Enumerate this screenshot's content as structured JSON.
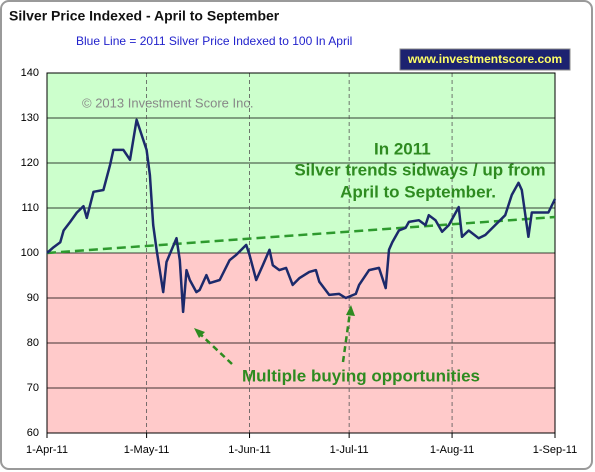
{
  "chart_data": {
    "type": "line",
    "title": "Silver Price Indexed - April to September",
    "subtitle": "Blue Line =  2011 Silver Price Indexed to 100 In April",
    "website": "www.investmentscore.com",
    "copyright": "© 2013 Investment Score Inc.",
    "annotations": [
      "In 2011",
      "Silver trends sidways / up from",
      "April to September.",
      "Multiple buying opportunities"
    ],
    "x": [
      "2011-04-01",
      "2011-04-03",
      "2011-04-05",
      "2011-04-06",
      "2011-04-08",
      "2011-04-10",
      "2011-04-12",
      "2011-04-13",
      "2011-04-15",
      "2011-04-18",
      "2011-04-20",
      "2011-04-21",
      "2011-04-24",
      "2011-04-26",
      "2011-04-28",
      "2011-05-01",
      "2011-05-02",
      "2011-05-03",
      "2011-05-04",
      "2011-05-06",
      "2011-05-07",
      "2011-05-10",
      "2011-05-11",
      "2011-05-12",
      "2011-05-13",
      "2011-05-14",
      "2011-05-16",
      "2011-05-17",
      "2011-05-19",
      "2011-05-20",
      "2011-05-23",
      "2011-05-26",
      "2011-05-28",
      "2011-05-31",
      "2011-06-01",
      "2011-06-03",
      "2011-06-05",
      "2011-06-07",
      "2011-06-08",
      "2011-06-10",
      "2011-06-12",
      "2011-06-14",
      "2011-06-16",
      "2011-06-19",
      "2011-06-21",
      "2011-06-22",
      "2011-06-25",
      "2011-06-28",
      "2011-06-30",
      "2011-07-03",
      "2011-07-04",
      "2011-07-07",
      "2011-07-10",
      "2011-07-12",
      "2011-07-13",
      "2011-07-14",
      "2011-07-16",
      "2011-07-18",
      "2011-07-19",
      "2011-07-22",
      "2011-07-24",
      "2011-07-25",
      "2011-07-27",
      "2011-07-29",
      "2011-07-31",
      "2011-08-03",
      "2011-08-04",
      "2011-08-06",
      "2011-08-09",
      "2011-08-11",
      "2011-08-14",
      "2011-08-17",
      "2011-08-19",
      "2011-08-21",
      "2011-08-22",
      "2011-08-24",
      "2011-08-25",
      "2011-08-27",
      "2011-08-30",
      "2011-09-01"
    ],
    "series": [
      {
        "color": "#1c2a6b",
        "values": [
          100,
          101.3,
          102.4,
          105,
          106.9,
          109,
          110.4,
          107.8,
          113.6,
          114,
          119.6,
          122.9,
          122.9,
          120.7,
          129.6,
          122.9,
          117.3,
          106.2,
          100.7,
          91.3,
          98,
          103.3,
          98.4,
          86.9,
          96.2,
          94,
          91.3,
          91.8,
          95.1,
          93.3,
          94,
          98.4,
          99.6,
          101.8,
          99.6,
          94,
          97.3,
          100.7,
          97.3,
          96.2,
          96.7,
          92.9,
          94.4,
          95.8,
          96.2,
          93.6,
          90.7,
          90.9,
          90,
          90.9,
          92.9,
          96.2,
          96.7,
          92.2,
          100.7,
          102.4,
          105,
          105.6,
          106.9,
          107.3,
          106.2,
          108.4,
          107.3,
          104.7,
          106.2,
          110.2,
          103.6,
          105,
          103.3,
          104,
          106.2,
          108.4,
          112.9,
          115.6,
          114,
          103.6,
          109,
          109,
          109,
          112
        ]
      }
    ],
    "trend": {
      "x": [
        "2011-04-01",
        "2011-09-01"
      ],
      "values": [
        100,
        108
      ],
      "color": "#2e9a2e"
    },
    "baseline": 100,
    "above_color": "#ccffcc",
    "below_color": "#ffcaca",
    "xlim": [
      "2011-04-01",
      "2011-09-01"
    ],
    "xticks": [
      {
        "value": "2011-04-01",
        "label": "1-Apr-11"
      },
      {
        "value": "2011-05-01",
        "label": "1-May-11"
      },
      {
        "value": "2011-06-01",
        "label": "1-Jun-11"
      },
      {
        "value": "2011-07-01",
        "label": "1-Jul-11"
      },
      {
        "value": "2011-08-01",
        "label": "1-Aug-11"
      },
      {
        "value": "2011-09-01",
        "label": "1-Sep-11"
      }
    ],
    "ylim": [
      60,
      140
    ],
    "yticks": [
      60,
      70,
      80,
      90,
      100,
      110,
      120,
      130,
      140
    ],
    "grid": true
  }
}
